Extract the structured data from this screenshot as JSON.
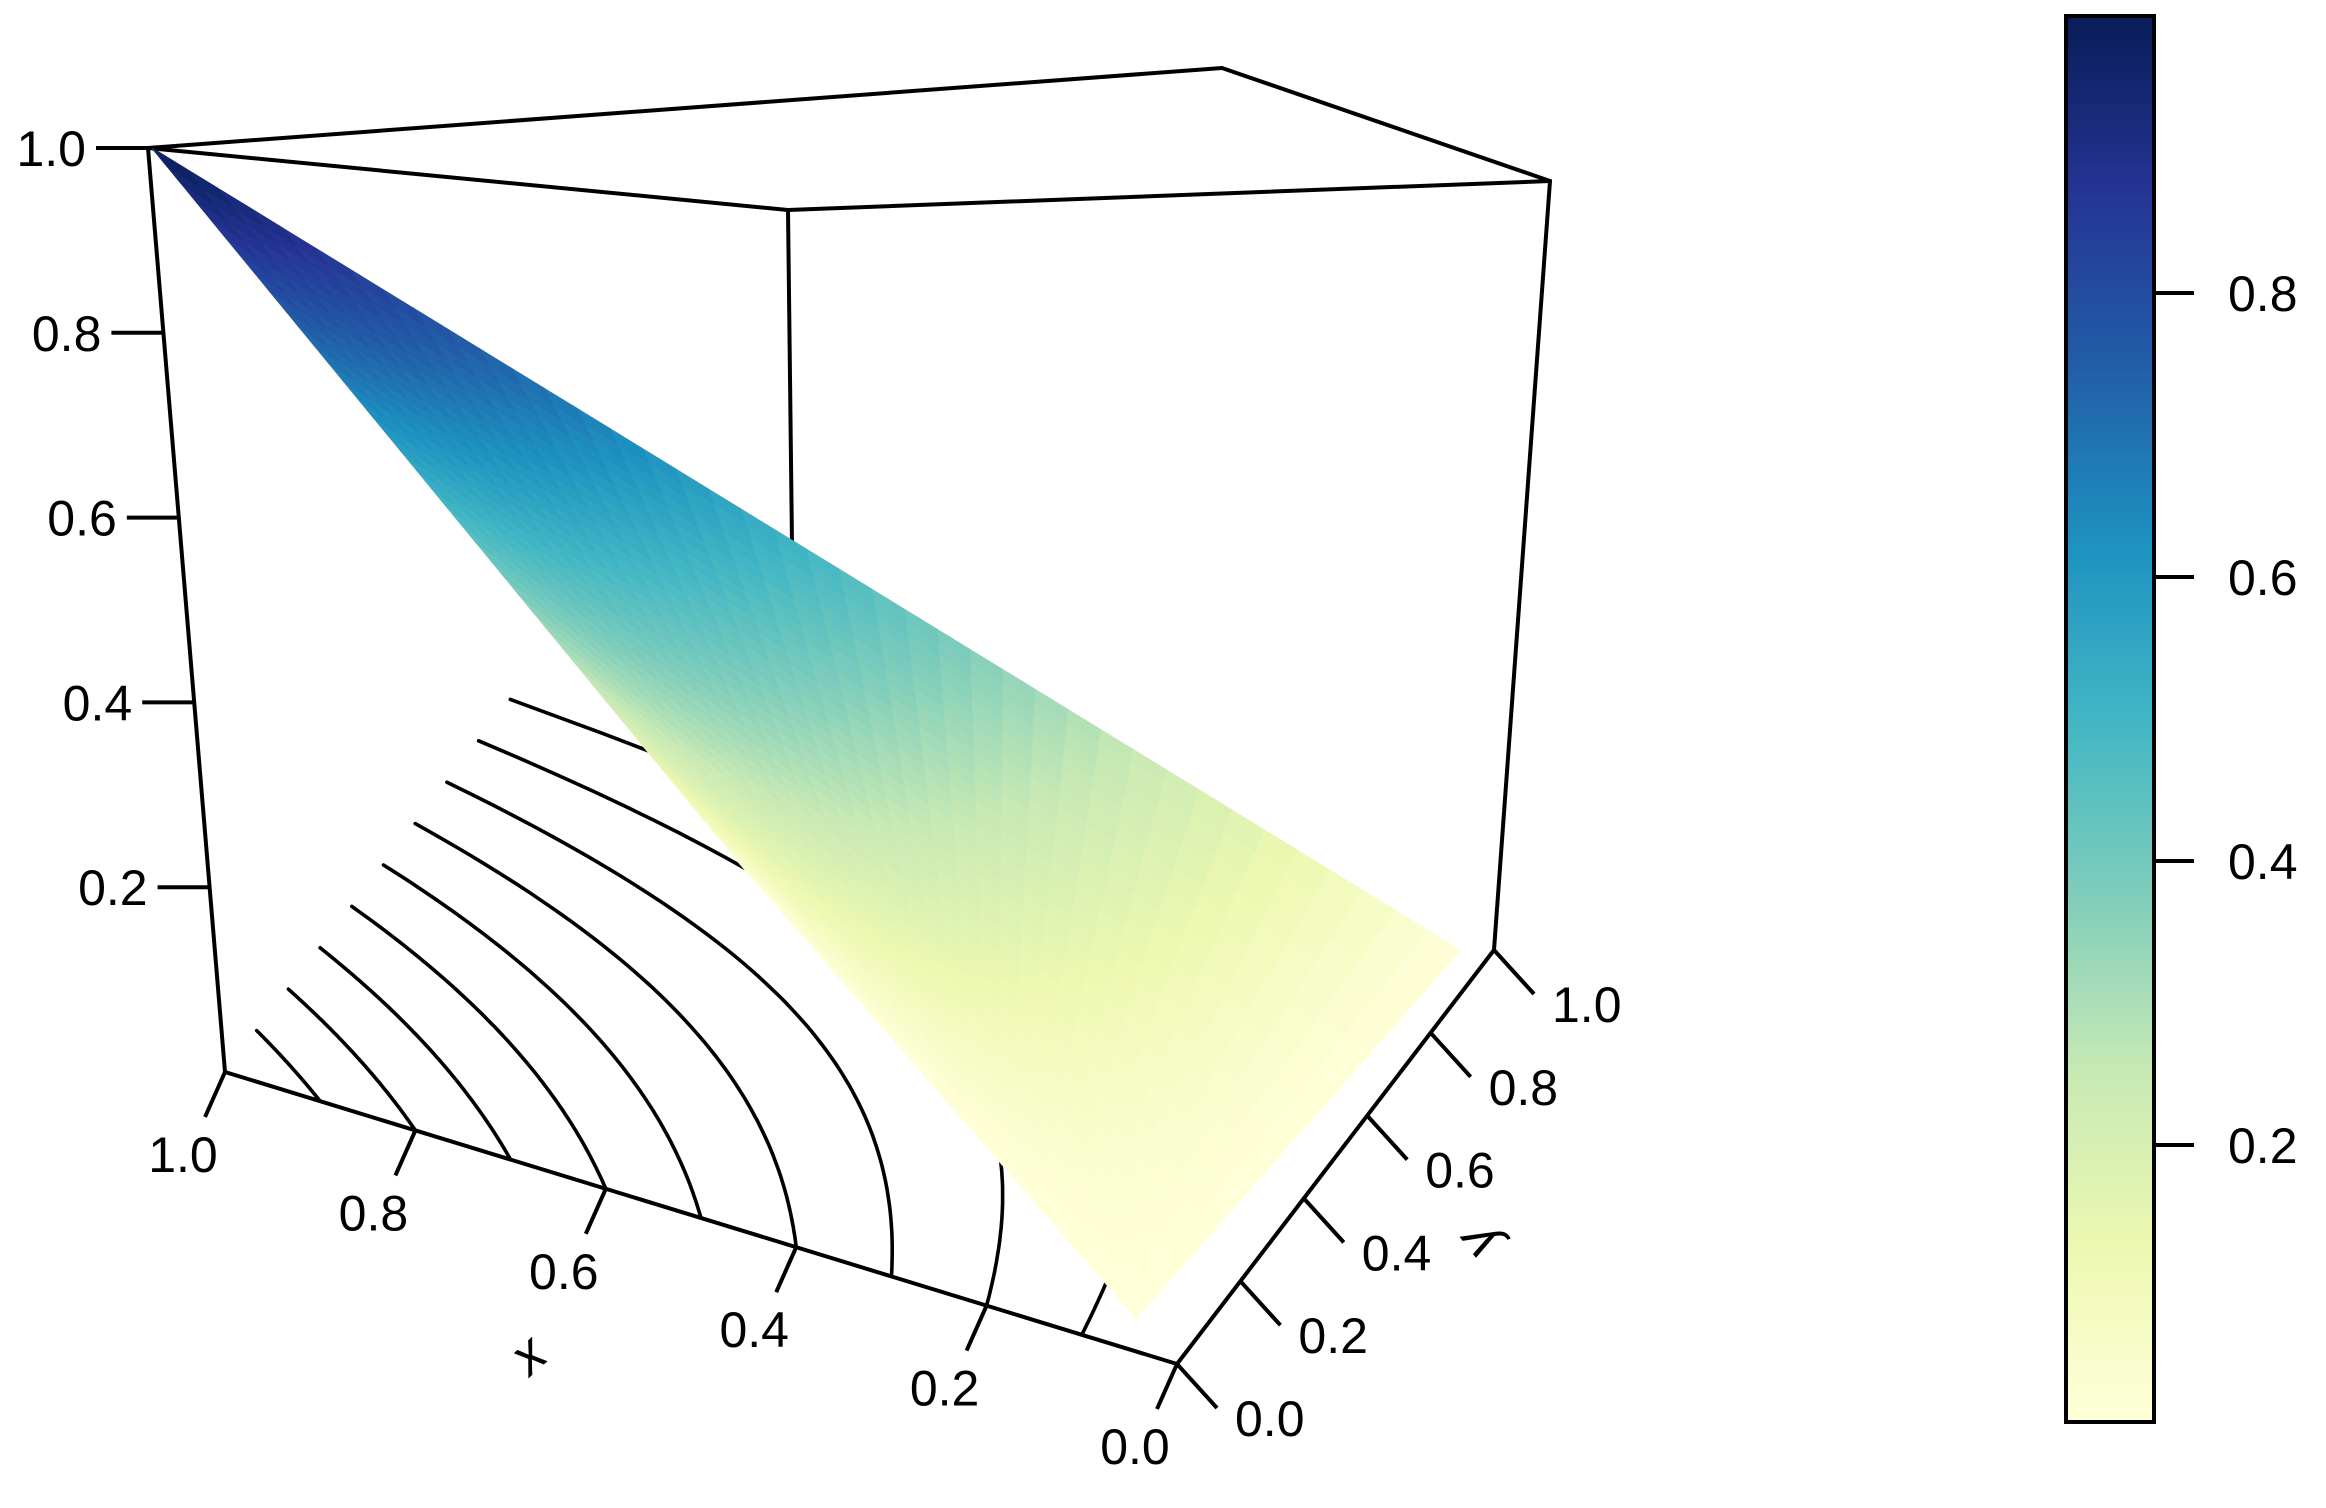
{
  "chart_data": {
    "type": "surface3d",
    "title": "",
    "surface": {
      "function": "x*(1-y)",
      "description": "z = x(1 - y)"
    },
    "axes": {
      "x": {
        "label": "x",
        "ticks": [
          "1.0",
          "0.8",
          "0.6",
          "0.4",
          "0.2",
          "0.0"
        ],
        "range": [
          0,
          1
        ]
      },
      "y": {
        "label": "y",
        "ticks": [
          "0.0",
          "0.2",
          "0.4",
          "0.6",
          "0.8",
          "1.0"
        ],
        "range": [
          0,
          1
        ]
      },
      "z": {
        "label": "",
        "ticks": [
          "1.0",
          "0.8",
          "0.6",
          "0.4",
          "0.2"
        ],
        "range": [
          0,
          1
        ]
      }
    },
    "contours": {
      "levels": [
        0.1,
        0.2,
        0.3,
        0.4,
        0.5,
        0.6,
        0.7,
        0.8,
        0.9
      ],
      "projected_on": "floor"
    },
    "colorbar": {
      "ticks": [
        "0.8",
        "0.6",
        "0.4",
        "0.2"
      ],
      "tick_values": [
        0.8,
        0.6,
        0.4,
        0.2
      ],
      "range": [
        0.005,
        0.995
      ],
      "colors": [
        "#ffffd9",
        "#edf8b1",
        "#c7e9b4",
        "#7fcdbb",
        "#41b6c4",
        "#1d91c0",
        "#225ea8",
        "#253494",
        "#081d58"
      ]
    },
    "grid": false
  }
}
